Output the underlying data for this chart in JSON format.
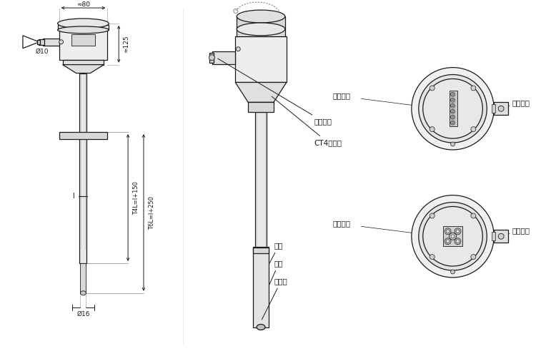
{
  "bg_color": "#ffffff",
  "line_color": "#1a1a1a",
  "fig_width": 7.5,
  "fig_height": 4.99,
  "dim_80": "≈80",
  "dim_125": "≈125",
  "dim_10": "Ø10",
  "dim_16": "Ø16",
  "dim_T4L": "T4L=l+150",
  "dim_T6L": "T6L=l+250",
  "label_outlet1": "电气出口",
  "label_box": "CT4防爆盒",
  "label_outlet2": "电气出口",
  "label_wire": "偶丝",
  "label_bead": "瓷珠",
  "label_tip": "测量端",
  "label_terminal1": "接线端子",
  "label_terminal2": "接线端子",
  "label_l": "l"
}
